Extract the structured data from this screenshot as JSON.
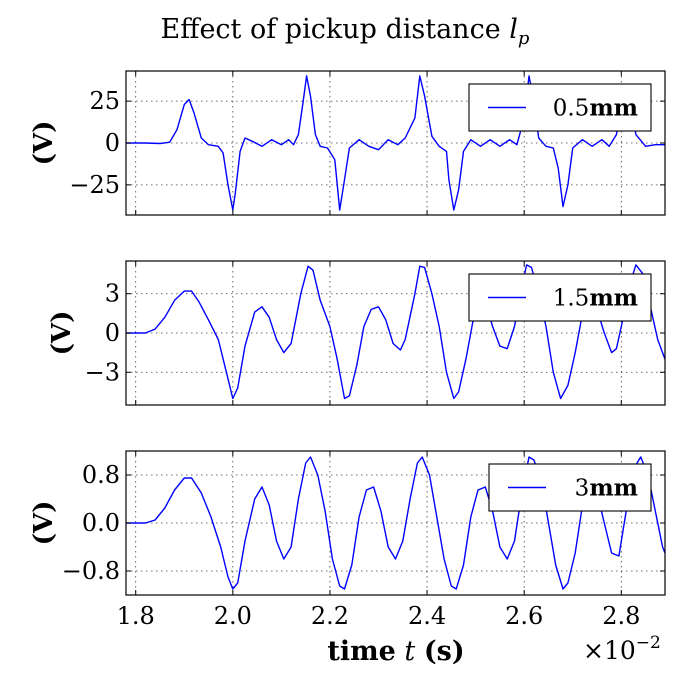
{
  "chart_data": {
    "type": "line",
    "title": "Effect of pickup distance",
    "title_symbol": "l",
    "title_symbol_sub": "p",
    "xlabel": "time",
    "xlabel_symbol": "t",
    "xlabel_unit": "(s)",
    "x_offset_text": "×10",
    "x_offset_exp": "−2",
    "xlim": [
      1.78,
      2.89
    ],
    "xticks": [
      1.8,
      2.0,
      2.2,
      2.4,
      2.6,
      2.8
    ],
    "xtick_labels": [
      "1.8",
      "2.0",
      "2.2",
      "2.4",
      "2.6",
      "2.8"
    ],
    "grid": true,
    "legend_position": "top-right",
    "panels": [
      {
        "series_name": "0.5",
        "series_unit": "mm",
        "ylabel": "(V)",
        "ylim": [
          -43,
          43
        ],
        "yticks": [
          25,
          0,
          -25
        ],
        "ytick_labels": [
          "25",
          "0",
          "−25"
        ],
        "points": [
          [
            1.78,
            0
          ],
          [
            1.82,
            0
          ],
          [
            1.85,
            -0.3
          ],
          [
            1.87,
            0.5
          ],
          [
            1.885,
            8
          ],
          [
            1.9,
            23
          ],
          [
            1.91,
            26
          ],
          [
            1.92,
            18
          ],
          [
            1.935,
            3
          ],
          [
            1.95,
            -1
          ],
          [
            1.97,
            -2
          ],
          [
            1.98,
            -6
          ],
          [
            1.99,
            -25
          ],
          [
            2.0,
            -40
          ],
          [
            2.005,
            -30
          ],
          [
            2.015,
            -5
          ],
          [
            2.025,
            3
          ],
          [
            2.04,
            1
          ],
          [
            2.06,
            -2
          ],
          [
            2.08,
            2
          ],
          [
            2.1,
            -1
          ],
          [
            2.115,
            2
          ],
          [
            2.125,
            -1
          ],
          [
            2.135,
            5
          ],
          [
            2.145,
            25
          ],
          [
            2.152,
            40
          ],
          [
            2.16,
            28
          ],
          [
            2.17,
            5
          ],
          [
            2.18,
            -2
          ],
          [
            2.195,
            -3
          ],
          [
            2.21,
            -10
          ],
          [
            2.22,
            -40
          ],
          [
            2.23,
            -22
          ],
          [
            2.24,
            -3
          ],
          [
            2.26,
            2
          ],
          [
            2.28,
            -2
          ],
          [
            2.3,
            -4
          ],
          [
            2.32,
            2
          ],
          [
            2.34,
            -1
          ],
          [
            2.355,
            3
          ],
          [
            2.375,
            15
          ],
          [
            2.385,
            40
          ],
          [
            2.395,
            28
          ],
          [
            2.41,
            4
          ],
          [
            2.425,
            -2
          ],
          [
            2.44,
            -5
          ],
          [
            2.445,
            -22
          ],
          [
            2.455,
            -40
          ],
          [
            2.465,
            -28
          ],
          [
            2.475,
            -5
          ],
          [
            2.49,
            2
          ],
          [
            2.51,
            -2
          ],
          [
            2.53,
            2
          ],
          [
            2.55,
            -2
          ],
          [
            2.57,
            2
          ],
          [
            2.585,
            -1
          ],
          [
            2.6,
            15
          ],
          [
            2.61,
            40
          ],
          [
            2.62,
            25
          ],
          [
            2.63,
            3
          ],
          [
            2.645,
            -2
          ],
          [
            2.66,
            -3
          ],
          [
            2.67,
            -15
          ],
          [
            2.68,
            -38
          ],
          [
            2.69,
            -25
          ],
          [
            2.7,
            -3
          ],
          [
            2.72,
            2
          ],
          [
            2.74,
            -2
          ],
          [
            2.76,
            2
          ],
          [
            2.775,
            -2
          ],
          [
            2.79,
            5
          ],
          [
            2.8,
            20
          ],
          [
            2.81,
            35
          ],
          [
            2.82,
            25
          ],
          [
            2.83,
            5
          ],
          [
            2.85,
            -2
          ],
          [
            2.87,
            -1
          ],
          [
            2.89,
            -1
          ]
        ]
      },
      {
        "series_name": "1.5",
        "series_unit": "mm",
        "ylabel": "(V)",
        "ylim": [
          -5.5,
          5.5
        ],
        "yticks": [
          3,
          0,
          -3
        ],
        "ytick_labels": [
          "3",
          "0",
          "−3"
        ],
        "points": [
          [
            1.78,
            0
          ],
          [
            1.82,
            0
          ],
          [
            1.84,
            0.3
          ],
          [
            1.86,
            1.2
          ],
          [
            1.88,
            2.5
          ],
          [
            1.9,
            3.2
          ],
          [
            1.915,
            3.2
          ],
          [
            1.93,
            2.4
          ],
          [
            1.95,
            1.0
          ],
          [
            1.97,
            -0.5
          ],
          [
            1.99,
            -3.5
          ],
          [
            2.0,
            -5.0
          ],
          [
            2.01,
            -4.2
          ],
          [
            2.025,
            -1.0
          ],
          [
            2.045,
            1.6
          ],
          [
            2.06,
            2.0
          ],
          [
            2.075,
            1.2
          ],
          [
            2.09,
            -0.5
          ],
          [
            2.105,
            -1.5
          ],
          [
            2.12,
            -0.8
          ],
          [
            2.14,
            3.0
          ],
          [
            2.155,
            5.1
          ],
          [
            2.165,
            4.8
          ],
          [
            2.18,
            2.5
          ],
          [
            2.2,
            0.5
          ],
          [
            2.215,
            -2.0
          ],
          [
            2.23,
            -5.0
          ],
          [
            2.24,
            -4.8
          ],
          [
            2.255,
            -2.5
          ],
          [
            2.27,
            0.5
          ],
          [
            2.285,
            1.8
          ],
          [
            2.3,
            2.0
          ],
          [
            2.315,
            1.0
          ],
          [
            2.33,
            -0.8
          ],
          [
            2.345,
            -1.3
          ],
          [
            2.355,
            -0.5
          ],
          [
            2.375,
            3.0
          ],
          [
            2.385,
            5.1
          ],
          [
            2.395,
            5.0
          ],
          [
            2.41,
            3.0
          ],
          [
            2.425,
            0.5
          ],
          [
            2.44,
            -3.0
          ],
          [
            2.455,
            -5.0
          ],
          [
            2.465,
            -4.5
          ],
          [
            2.48,
            -2.0
          ],
          [
            2.495,
            1.0
          ],
          [
            2.51,
            2.5
          ],
          [
            2.52,
            2.4
          ],
          [
            2.535,
            0.5
          ],
          [
            2.55,
            -1.0
          ],
          [
            2.565,
            -1.2
          ],
          [
            2.58,
            0.5
          ],
          [
            2.595,
            3.5
          ],
          [
            2.605,
            5.2
          ],
          [
            2.615,
            5.0
          ],
          [
            2.63,
            3.0
          ],
          [
            2.645,
            0.5
          ],
          [
            2.66,
            -3.0
          ],
          [
            2.675,
            -5.0
          ],
          [
            2.69,
            -4.0
          ],
          [
            2.705,
            -1.5
          ],
          [
            2.72,
            1.5
          ],
          [
            2.735,
            2.5
          ],
          [
            2.75,
            1.8
          ],
          [
            2.765,
            0
          ],
          [
            2.78,
            -1.5
          ],
          [
            2.79,
            -1.2
          ],
          [
            2.8,
            0.5
          ],
          [
            2.82,
            4.0
          ],
          [
            2.83,
            5.2
          ],
          [
            2.845,
            4.5
          ],
          [
            2.86,
            2.0
          ],
          [
            2.875,
            -0.5
          ],
          [
            2.89,
            -2.0
          ]
        ]
      },
      {
        "series_name": "3",
        "series_unit": "mm",
        "ylabel": "(V)",
        "ylim": [
          -1.2,
          1.2
        ],
        "yticks": [
          0.8,
          0.0,
          -0.8
        ],
        "ytick_labels": [
          "0.8",
          "0.0",
          "−0.8"
        ],
        "points": [
          [
            1.78,
            0
          ],
          [
            1.82,
            0
          ],
          [
            1.84,
            0.05
          ],
          [
            1.86,
            0.25
          ],
          [
            1.88,
            0.55
          ],
          [
            1.9,
            0.75
          ],
          [
            1.915,
            0.75
          ],
          [
            1.935,
            0.5
          ],
          [
            1.955,
            0.1
          ],
          [
            1.975,
            -0.4
          ],
          [
            1.99,
            -0.9
          ],
          [
            2.0,
            -1.1
          ],
          [
            2.01,
            -1.0
          ],
          [
            2.025,
            -0.3
          ],
          [
            2.045,
            0.4
          ],
          [
            2.06,
            0.6
          ],
          [
            2.075,
            0.3
          ],
          [
            2.09,
            -0.3
          ],
          [
            2.105,
            -0.6
          ],
          [
            2.12,
            -0.4
          ],
          [
            2.135,
            0.4
          ],
          [
            2.15,
            1.0
          ],
          [
            2.16,
            1.1
          ],
          [
            2.175,
            0.8
          ],
          [
            2.19,
            0.2
          ],
          [
            2.205,
            -0.6
          ],
          [
            2.22,
            -1.05
          ],
          [
            2.23,
            -1.1
          ],
          [
            2.245,
            -0.7
          ],
          [
            2.26,
            0.1
          ],
          [
            2.275,
            0.55
          ],
          [
            2.29,
            0.6
          ],
          [
            2.305,
            0.2
          ],
          [
            2.32,
            -0.4
          ],
          [
            2.335,
            -0.6
          ],
          [
            2.35,
            -0.3
          ],
          [
            2.365,
            0.4
          ],
          [
            2.38,
            1.0
          ],
          [
            2.39,
            1.1
          ],
          [
            2.405,
            0.8
          ],
          [
            2.42,
            0.1
          ],
          [
            2.435,
            -0.6
          ],
          [
            2.45,
            -1.05
          ],
          [
            2.46,
            -1.1
          ],
          [
            2.475,
            -0.7
          ],
          [
            2.49,
            0.1
          ],
          [
            2.505,
            0.55
          ],
          [
            2.52,
            0.6
          ],
          [
            2.535,
            0.2
          ],
          [
            2.55,
            -0.4
          ],
          [
            2.565,
            -0.6
          ],
          [
            2.58,
            -0.3
          ],
          [
            2.595,
            0.5
          ],
          [
            2.61,
            1.1
          ],
          [
            2.62,
            1.05
          ],
          [
            2.635,
            0.7
          ],
          [
            2.65,
            0.0
          ],
          [
            2.665,
            -0.7
          ],
          [
            2.68,
            -1.1
          ],
          [
            2.69,
            -1.0
          ],
          [
            2.705,
            -0.5
          ],
          [
            2.72,
            0.3
          ],
          [
            2.735,
            0.6
          ],
          [
            2.75,
            0.5
          ],
          [
            2.765,
            0.0
          ],
          [
            2.78,
            -0.5
          ],
          [
            2.795,
            -0.55
          ],
          [
            2.81,
            0.2
          ],
          [
            2.825,
            0.9
          ],
          [
            2.84,
            1.1
          ],
          [
            2.855,
            0.8
          ],
          [
            2.87,
            0.2
          ],
          [
            2.885,
            -0.4
          ],
          [
            2.89,
            -0.5
          ]
        ]
      }
    ]
  }
}
